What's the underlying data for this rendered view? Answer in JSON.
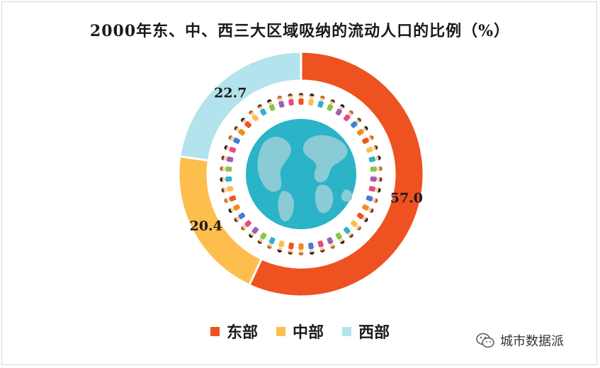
{
  "chart_data": {
    "type": "pie",
    "title": "2000年东、中、西三大区域吸纳的流动人口的比例（%）",
    "categories": [
      "东部",
      "中部",
      "西部"
    ],
    "values": [
      57.0,
      20.4,
      22.7
    ],
    "value_labels": [
      "57.0",
      "20.4",
      "22.7"
    ],
    "colors": [
      "#EE5220",
      "#FDBE4D",
      "#B3E3EC"
    ],
    "legend_position": "bottom-center",
    "style": "donut"
  },
  "colors": {
    "globe_ocean": "#2BB3C7",
    "globe_land": "#8ACBD6"
  },
  "watermark": {
    "icon": "wechat-icon",
    "text": "城市数据派"
  }
}
